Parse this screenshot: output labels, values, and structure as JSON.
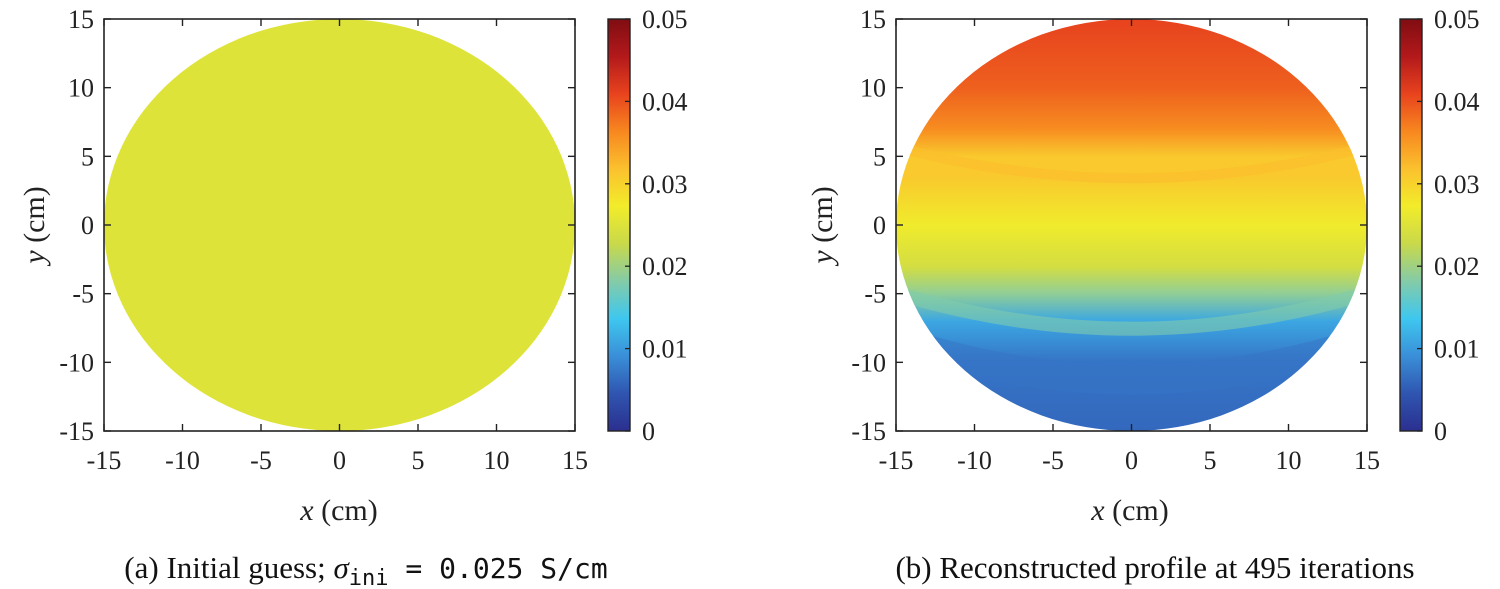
{
  "chart_data": [
    {
      "type": "heatmap",
      "id": "a",
      "title": "",
      "caption": {
        "prefix": "(a) Initial guess; ",
        "symbol": "σ",
        "subscript": "ini",
        "suffix": " = 0.025 S/cm"
      },
      "xlabel": {
        "var": "x",
        "unit": " (cm)"
      },
      "ylabel": {
        "var": "y",
        "unit": " (cm)"
      },
      "xlim": [
        -15,
        15
      ],
      "ylim": [
        -15,
        15
      ],
      "xticks": [
        -15,
        -10,
        -5,
        0,
        5,
        10,
        15
      ],
      "yticks": [
        -15,
        -10,
        -5,
        0,
        5,
        10,
        15
      ],
      "xtick_labels": [
        "-15",
        "-10",
        "-5",
        "0",
        "5",
        "10",
        "15"
      ],
      "ytick_labels": [
        "-15",
        "-10",
        "-5",
        "0",
        "5",
        "10",
        "15"
      ],
      "domain": "circle of radius 15 cm centered at origin",
      "field": "uniform",
      "value": 0.025,
      "colorbar": {
        "range": [
          0,
          0.05
        ],
        "ticks": [
          0,
          0.01,
          0.02,
          0.03,
          0.04,
          0.05
        ],
        "tick_labels": [
          "0",
          "0.01",
          "0.02",
          "0.03",
          "0.04",
          "0.05"
        ]
      }
    },
    {
      "type": "heatmap",
      "id": "b",
      "title": "",
      "caption": {
        "text": "(b) Reconstructed profile at 495 iterations"
      },
      "xlabel": {
        "var": "x",
        "unit": " (cm)"
      },
      "ylabel": {
        "var": "y",
        "unit": " (cm)"
      },
      "xlim": [
        -15,
        15
      ],
      "ylim": [
        -15,
        15
      ],
      "xticks": [
        -15,
        -10,
        -5,
        0,
        5,
        10,
        15
      ],
      "yticks": [
        -15,
        -10,
        -5,
        0,
        5,
        10,
        15
      ],
      "xtick_labels": [
        "-15",
        "-10",
        "-5",
        "0",
        "5",
        "10",
        "15"
      ],
      "ytick_labels": [
        "-15",
        "-10",
        "-5",
        "0",
        "5",
        "10",
        "15"
      ],
      "domain": "circle of radius 15 cm centered at origin",
      "field": "layered",
      "profile_y": [
        15,
        10,
        7,
        5,
        3.5,
        0,
        -3,
        -5,
        -7,
        -10,
        -15
      ],
      "profile_value": [
        0.041,
        0.039,
        0.036,
        0.031,
        0.031,
        0.027,
        0.024,
        0.019,
        0.011,
        0.007,
        0.006
      ],
      "colorbar": {
        "range": [
          0,
          0.05
        ],
        "ticks": [
          0,
          0.01,
          0.02,
          0.03,
          0.04,
          0.05
        ],
        "tick_labels": [
          "0",
          "0.01",
          "0.02",
          "0.03",
          "0.04",
          "0.05"
        ]
      }
    }
  ],
  "colormap": [
    "#2b2f8f",
    "#2f55b0",
    "#3a8fd8",
    "#3ec7ef",
    "#84cba8",
    "#c9d94a",
    "#f2ec2a",
    "#fbc12e",
    "#f7871f",
    "#e8431e",
    "#b3191b",
    "#7f0d12"
  ]
}
